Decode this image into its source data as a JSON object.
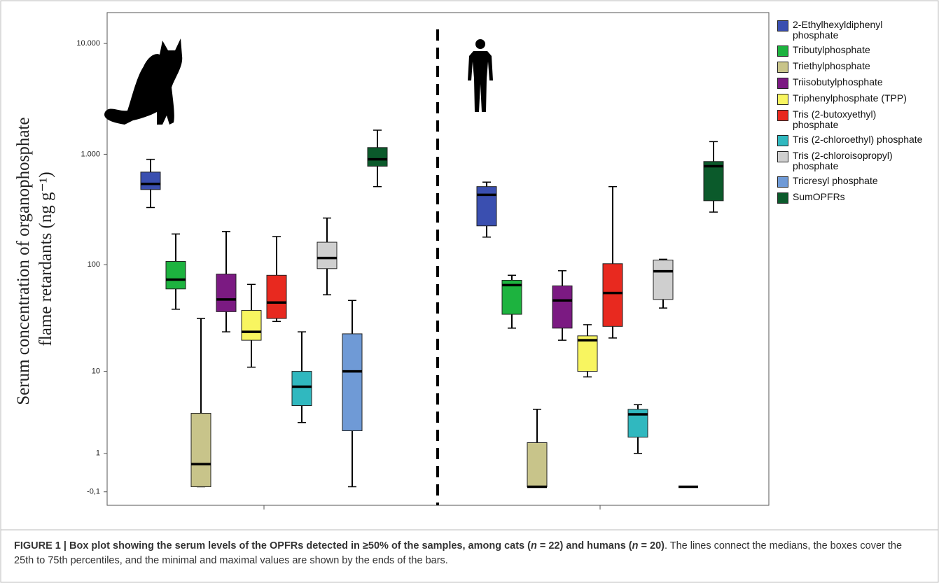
{
  "chart_data": {
    "type": "box",
    "ylabel": [
      "Serum concentration of organophosphate",
      "flame retardants (ng g⁻¹)"
    ],
    "categories": [
      null,
      null
    ],
    "yscale": "log1p",
    "ylim": [
      -0.32,
      19000
    ],
    "yticks": [
      {
        "value": -0.1,
        "label": "-0,1"
      },
      1,
      10,
      100,
      {
        "value": 1000,
        "label": "1.000"
      },
      {
        "value": 10000,
        "label": "10.000"
      }
    ],
    "series": [
      {
        "name": "2-Ethylhexyldiphenyl phosphate",
        "color": "#3a4fb0",
        "values": [
          {
            "min": 330,
            "q1": 480,
            "median": 540,
            "q3": 690,
            "max": 900
          },
          {
            "min": 178,
            "q1": 225,
            "median": 430,
            "q3": 510,
            "max": 560
          }
        ]
      },
      {
        "name": "Tributylphosphate",
        "color": "#1db33f",
        "values": [
          {
            "min": 39,
            "q1": 60,
            "median": 73,
            "q3": 107,
            "max": 190
          },
          {
            "min": 26,
            "q1": 35,
            "median": 65,
            "q3": 72,
            "max": 80
          }
        ]
      },
      {
        "name": "Triethylphosphate",
        "color": "#c8c48a",
        "values": [
          {
            "min": 0,
            "q1": 0,
            "median": 0.6,
            "q3": 3.6,
            "max": 32
          },
          {
            "min": 0,
            "q1": 0,
            "median": 0,
            "q3": 1.5,
            "max": 4
          }
        ]
      },
      {
        "name": "Triisobutylphosphate",
        "color": "#7b1a82",
        "values": [
          {
            "min": 24,
            "q1": 37,
            "median": 48,
            "q3": 82,
            "max": 200
          },
          {
            "min": 20,
            "q1": 26,
            "median": 47,
            "q3": 64,
            "max": 88
          }
        ]
      },
      {
        "name": "Triphenylphosphate (TPP)",
        "color": "#f8f560",
        "values": [
          {
            "min": 11,
            "q1": 20,
            "median": 24,
            "q3": 38,
            "max": 66
          },
          {
            "min": 8.8,
            "q1": 10,
            "median": 20,
            "q3": 22,
            "max": 28
          }
        ]
      },
      {
        "name": "Tris (2-butoxyethyl) phosphate",
        "color": "#e8291f",
        "values": [
          {
            "min": 30,
            "q1": 32,
            "median": 45,
            "q3": 80,
            "max": 180
          },
          {
            "min": 21,
            "q1": 27,
            "median": 55,
            "q3": 102,
            "max": 510
          }
        ]
      },
      {
        "name": "Tris (2-chloroethyl) phosphate",
        "color": "#30b8bf",
        "values": [
          {
            "min": 2.8,
            "q1": 4.4,
            "median": 7,
            "q3": 10,
            "max": 24
          },
          {
            "min": 1,
            "q1": 1.8,
            "median": 3.5,
            "q3": 4,
            "max": 4.5
          }
        ]
      },
      {
        "name": "Tris (2-chloroisopropyl) phosphate",
        "color": "#cfcfcf",
        "values": [
          {
            "min": 53,
            "q1": 92,
            "median": 115,
            "q3": 160,
            "max": 265
          },
          {
            "min": 40,
            "q1": 48,
            "median": 87,
            "q3": 110,
            "max": 112
          }
        ]
      },
      {
        "name": "Tricresyl phosphate",
        "color": "#6f9ad6",
        "values": [
          {
            "min": 0,
            "q1": 2.2,
            "median": 10,
            "q3": 23,
            "max": 47
          },
          {
            "min": 0,
            "q1": 0,
            "median": 0,
            "q3": 0,
            "max": 0
          }
        ]
      },
      {
        "name": "SumOPFRs",
        "color": "#0b5a2b",
        "values": [
          {
            "min": 510,
            "q1": 780,
            "median": 900,
            "q3": 1150,
            "max": 1650
          },
          {
            "min": 300,
            "q1": 380,
            "median": 780,
            "q3": 860,
            "max": 1300
          }
        ]
      }
    ]
  },
  "caption": [
    "FIGURE 1 | Box plot showing the serum levels of the OPFRs detected in ≥50% of the samples, among cats (",
    "n",
    " = 22) and humans (",
    "n",
    " = 20)",
    ". The lines connect the medians, the boxes cover the 25th to 75th percentiles, and the minimal and maximal values are shown by the ends of the bars."
  ]
}
